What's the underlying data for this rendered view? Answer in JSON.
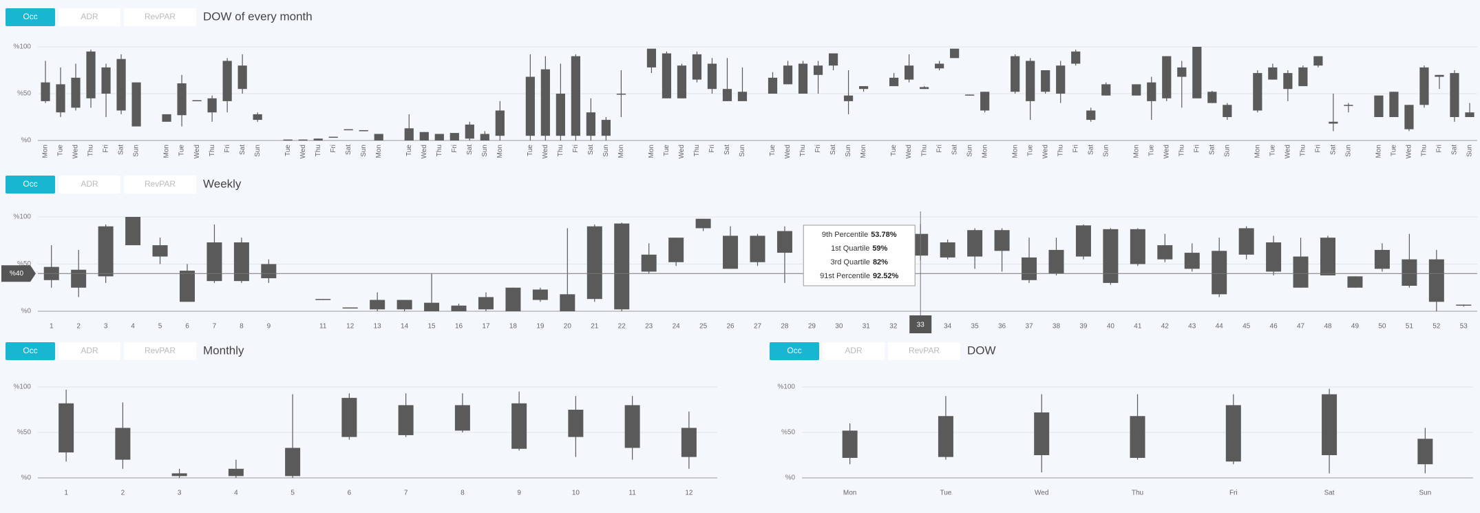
{
  "chart_data": [
    {
      "type": "box",
      "title": "DOW of every month",
      "tabs": [
        "Occ",
        "ADR",
        "RevPAR"
      ],
      "categories": [
        "Mon",
        "Tue",
        "Wed",
        "Thu",
        "Fri",
        "Sat",
        "Sun",
        null,
        "Mon",
        "Tue",
        "Wed",
        "Thu",
        "Fri",
        "Sat",
        "Sun",
        null,
        "Tue",
        "Wed",
        "Thu",
        "Fri",
        "Sat",
        "Sun",
        "Mon",
        null,
        "Tue",
        "Wed",
        "Thu",
        "Fri",
        "Sat",
        "Sun",
        "Mon",
        null,
        "Tue",
        "Wed",
        "Thu",
        "Fri",
        "Sat",
        "Sun",
        "Mon",
        null,
        "Mon",
        "Tue",
        "Wed",
        "Thu",
        "Fri",
        "Sat",
        "Sun",
        null,
        "Tue",
        "Wed",
        "Thu",
        "Fri",
        "Sat",
        "Sun",
        "Mon",
        null,
        "Tue",
        "Wed",
        "Thu",
        "Fri",
        "Sat",
        "Sun",
        "Mon",
        null,
        "Mon",
        "Tue",
        "Wed",
        "Thu",
        "Fri",
        "Sat",
        "Sun",
        null,
        "Mon",
        "Tue",
        "Wed",
        "Thu",
        "Fri",
        "Sat",
        "Sun",
        null,
        "Mon",
        "Tue",
        "Wed",
        "Thu",
        "Fri",
        "Sat",
        "Sun",
        null,
        "Mon",
        "Tue",
        "Wed",
        "Thu",
        "Fri",
        "Sat",
        "Sun"
      ],
      "series": [
        {
          "color": "#5a5a5a",
          "low": [
            40,
            25,
            32,
            35,
            25,
            28,
            15,
            null,
            20,
            15,
            42,
            20,
            30,
            50,
            20,
            null,
            0,
            0,
            0,
            3,
            11,
            10,
            0,
            null,
            0,
            0,
            0,
            0,
            0,
            0,
            0,
            null,
            0,
            0,
            0,
            0,
            0,
            0,
            25,
            null,
            72,
            45,
            45,
            62,
            50,
            42,
            42,
            null,
            50,
            60,
            50,
            50,
            75,
            28,
            52,
            null,
            58,
            62,
            55,
            75,
            88,
            48,
            30,
            null,
            50,
            22,
            50,
            40,
            80,
            20,
            48,
            null,
            48,
            22,
            42,
            35,
            45,
            40,
            22,
            null,
            30,
            65,
            42,
            58,
            78,
            10,
            30,
            null,
            25,
            25,
            10,
            35,
            55,
            20,
            25
          ],
          "q1": [
            42,
            30,
            35,
            45,
            50,
            32,
            15,
            null,
            20,
            27,
            42,
            30,
            42,
            55,
            22,
            null,
            0,
            0,
            0,
            3,
            11,
            10,
            0,
            null,
            0,
            0,
            0,
            0,
            2,
            0,
            5,
            null,
            5,
            5,
            5,
            5,
            5,
            5,
            49,
            null,
            78,
            45,
            45,
            65,
            55,
            42,
            42,
            null,
            50,
            60,
            50,
            70,
            80,
            42,
            55,
            null,
            58,
            65,
            55,
            77,
            88,
            48,
            32,
            null,
            52,
            42,
            52,
            50,
            82,
            22,
            48,
            null,
            48,
            42,
            45,
            68,
            45,
            40,
            25,
            null,
            32,
            65,
            55,
            58,
            80,
            18,
            38,
            null,
            25,
            25,
            12,
            38,
            68,
            25,
            25
          ],
          "q3": [
            62,
            60,
            67,
            95,
            78,
            87,
            62,
            null,
            28,
            61,
            43,
            45,
            85,
            80,
            28,
            null,
            1,
            1,
            2,
            4,
            12,
            11,
            7,
            null,
            13,
            9,
            7,
            8,
            17,
            7,
            32,
            null,
            68,
            76,
            50,
            90,
            30,
            22,
            50,
            null,
            98,
            93,
            80,
            92,
            82,
            55,
            52,
            null,
            67,
            80,
            82,
            80,
            93,
            48,
            58,
            null,
            67,
            80,
            57,
            82,
            98,
            49,
            52,
            null,
            90,
            85,
            75,
            80,
            95,
            32,
            60,
            null,
            60,
            62,
            90,
            78,
            100,
            52,
            38,
            null,
            72,
            78,
            72,
            78,
            90,
            20,
            38,
            null,
            48,
            52,
            38,
            78,
            70,
            72,
            30
          ],
          "high": [
            85,
            78,
            82,
            97,
            82,
            92,
            62,
            null,
            28,
            70,
            43,
            48,
            88,
            92,
            30,
            null,
            1,
            1,
            2,
            4,
            12,
            11,
            7,
            null,
            28,
            9,
            7,
            8,
            20,
            10,
            42,
            null,
            92,
            90,
            82,
            92,
            45,
            25,
            75,
            null,
            98,
            95,
            82,
            95,
            88,
            88,
            78,
            null,
            73,
            85,
            85,
            85,
            93,
            75,
            58,
            null,
            72,
            92,
            58,
            85,
            98,
            49,
            52,
            null,
            92,
            88,
            75,
            85,
            97,
            35,
            62,
            null,
            60,
            68,
            90,
            85,
            100,
            53,
            40,
            null,
            75,
            82,
            75,
            80,
            90,
            50,
            40,
            null,
            48,
            52,
            38,
            80,
            70,
            75,
            40
          ]
        }
      ],
      "ylim": [
        0,
        100
      ],
      "yticks": [
        {
          "value": 0,
          "label": "%0"
        },
        {
          "value": 50,
          "label": "%50"
        },
        {
          "value": 100,
          "label": "%100"
        }
      ],
      "grid": true,
      "x_label_rotation": -90
    },
    {
      "type": "box",
      "title": "Weekly",
      "tabs": [
        "Occ",
        "ADR",
        "RevPAR"
      ],
      "categories": [
        "1",
        "2",
        "3",
        "4",
        "5",
        "6",
        "7",
        "8",
        "9",
        null,
        "11",
        "12",
        "13",
        "14",
        "15",
        "16",
        "17",
        "18",
        "19",
        "20",
        "21",
        "22",
        "23",
        "24",
        "25",
        "26",
        "27",
        "28",
        "29",
        "30",
        "31",
        "32",
        "33",
        "34",
        "35",
        "36",
        "37",
        "38",
        "39",
        "40",
        "41",
        "42",
        "43",
        "44",
        "45",
        "46",
        "47",
        "48",
        "49",
        "50",
        "51",
        "52",
        "53"
      ],
      "series": [
        {
          "color": "#5a5a5a",
          "low": [
            25,
            15,
            30,
            70,
            50,
            10,
            30,
            30,
            30,
            null,
            12,
            3,
            0,
            0,
            0,
            0,
            0,
            0,
            10,
            0,
            10,
            0,
            40,
            48,
            85,
            45,
            48,
            30,
            48,
            50,
            52,
            40,
            53.78,
            55,
            45,
            42,
            30,
            38,
            55,
            28,
            48,
            52,
            42,
            15,
            55,
            38,
            25,
            38,
            25,
            42,
            25,
            0,
            5
          ],
          "q1": [
            33,
            25,
            37,
            70,
            58,
            10,
            32,
            32,
            35,
            null,
            12,
            3,
            2,
            2,
            0,
            0,
            2,
            0,
            12,
            0,
            13,
            2,
            42,
            52,
            88,
            45,
            52,
            62,
            50,
            55,
            55,
            45,
            59,
            57,
            58,
            64,
            33,
            40,
            58,
            30,
            50,
            55,
            45,
            18,
            60,
            42,
            25,
            38,
            25,
            45,
            27,
            10,
            6
          ],
          "q3": [
            47,
            44,
            90,
            100,
            70,
            43,
            73,
            73,
            50,
            null,
            13,
            4,
            12,
            12,
            9,
            6,
            15,
            25,
            23,
            18,
            90,
            93,
            60,
            78,
            98,
            80,
            80,
            85,
            65,
            78,
            80,
            70,
            82,
            73,
            86,
            86,
            57,
            65,
            91,
            87,
            87,
            70,
            62,
            64,
            88,
            73,
            58,
            78,
            37,
            65,
            55,
            55,
            7
          ],
          "high": [
            70,
            65,
            92,
            100,
            78,
            50,
            92,
            78,
            55,
            null,
            13,
            4,
            20,
            12,
            40,
            8,
            20,
            25,
            25,
            88,
            92,
            94,
            72,
            78,
            98,
            90,
            82,
            90,
            75,
            85,
            88,
            85,
            92.52,
            76,
            88,
            88,
            78,
            78,
            92,
            88,
            88,
            82,
            72,
            78,
            90,
            80,
            78,
            80,
            37,
            72,
            82,
            65,
            7
          ]
        }
      ],
      "ylim": [
        0,
        100
      ],
      "yticks": [
        {
          "value": 0,
          "label": "%0"
        },
        {
          "value": 50,
          "label": "%50"
        },
        {
          "value": 100,
          "label": "%100"
        }
      ],
      "grid": true,
      "crosshair_y": {
        "value": 40,
        "label": "%40"
      },
      "crosshair_x": "33",
      "tooltip": [
        {
          "label": "9th Percentile",
          "value": "53.78%"
        },
        {
          "label": "1st Quartile",
          "value": "59%"
        },
        {
          "label": "3rd Quartile",
          "value": "82%"
        },
        {
          "label": "91st Percentile",
          "value": "92.52%"
        }
      ]
    },
    {
      "type": "box",
      "title": "Monthly",
      "tabs": [
        "Occ",
        "ADR",
        "RevPAR"
      ],
      "categories": [
        "1",
        "2",
        "3",
        "4",
        "5",
        "6",
        "7",
        "8",
        "9",
        "10",
        "11",
        "12"
      ],
      "series": [
        {
          "color": "#5a5a5a",
          "low": [
            18,
            10,
            0,
            0,
            0,
            42,
            45,
            50,
            30,
            23,
            20,
            10
          ],
          "q1": [
            28,
            20,
            2,
            2,
            2,
            45,
            47,
            52,
            32,
            45,
            33,
            23
          ],
          "q3": [
            82,
            55,
            5,
            10,
            33,
            88,
            80,
            80,
            82,
            75,
            80,
            55
          ],
          "high": [
            97,
            83,
            10,
            20,
            92,
            93,
            93,
            93,
            95,
            90,
            90,
            73
          ]
        }
      ],
      "ylim": [
        0,
        100
      ],
      "yticks": [
        {
          "value": 0,
          "label": "%0"
        },
        {
          "value": 50,
          "label": "%50"
        },
        {
          "value": 100,
          "label": "%100"
        }
      ],
      "grid": true
    },
    {
      "type": "box",
      "title": "DOW",
      "tabs": [
        "Occ",
        "ADR",
        "RevPAR"
      ],
      "categories": [
        "Mon",
        "Tue",
        "Wed",
        "Thu",
        "Fri",
        "Sat",
        "Sun"
      ],
      "series": [
        {
          "color": "#5a5a5a",
          "low": [
            15,
            20,
            6,
            20,
            15,
            5,
            5
          ],
          "q1": [
            22,
            23,
            25,
            22,
            18,
            25,
            15
          ],
          "q3": [
            52,
            68,
            72,
            68,
            80,
            92,
            43
          ],
          "high": [
            60,
            90,
            92,
            92,
            92,
            98,
            55
          ]
        }
      ],
      "ylim": [
        0,
        100
      ],
      "yticks": [
        {
          "value": 0,
          "label": "%0"
        },
        {
          "value": 50,
          "label": "%50"
        },
        {
          "value": 100,
          "label": "%100"
        }
      ],
      "grid": true
    }
  ]
}
